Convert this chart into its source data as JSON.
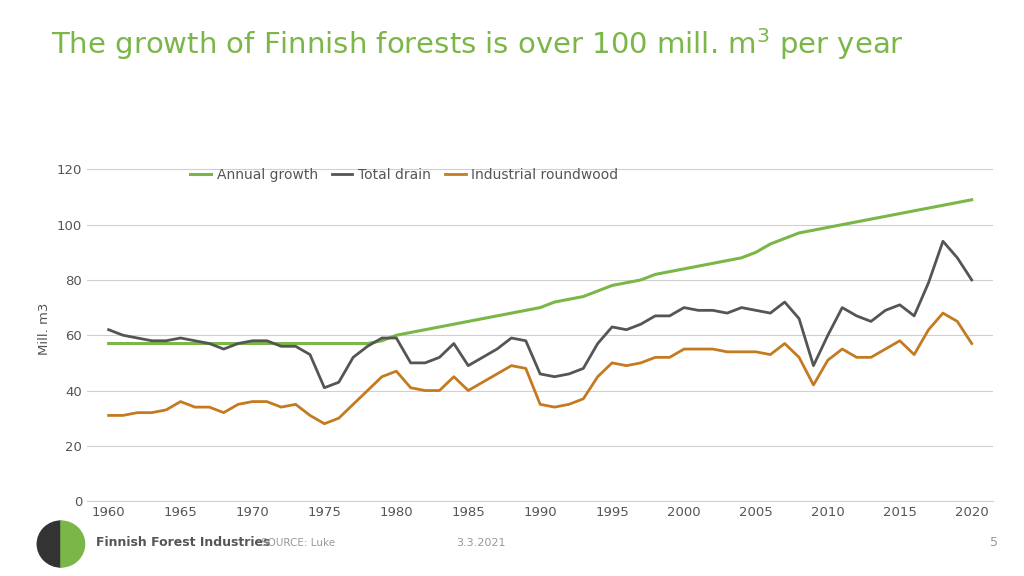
{
  "title_part1": "The growth of Finnish forests is over 100 mill. m",
  "title_super": "3",
  "title_part2": " per year",
  "title_color": "#7ab648",
  "ylabel": "Mill. m3",
  "background_color": "#ffffff",
  "plot_bg_color": "#ffffff",
  "grid_color": "#d0d0d0",
  "years": [
    1960,
    1961,
    1962,
    1963,
    1964,
    1965,
    1966,
    1967,
    1968,
    1969,
    1970,
    1971,
    1972,
    1973,
    1974,
    1975,
    1976,
    1977,
    1978,
    1979,
    1980,
    1981,
    1982,
    1983,
    1984,
    1985,
    1986,
    1987,
    1988,
    1989,
    1990,
    1991,
    1992,
    1993,
    1994,
    1995,
    1996,
    1997,
    1998,
    1999,
    2000,
    2001,
    2002,
    2003,
    2004,
    2005,
    2006,
    2007,
    2008,
    2009,
    2010,
    2011,
    2012,
    2013,
    2014,
    2015,
    2016,
    2017,
    2018,
    2019,
    2020
  ],
  "annual_growth": [
    57,
    57,
    57,
    57,
    57,
    57,
    57,
    57,
    57,
    57,
    57,
    57,
    57,
    57,
    57,
    57,
    57,
    57,
    57,
    58,
    60,
    61,
    62,
    63,
    64,
    65,
    66,
    67,
    68,
    69,
    70,
    72,
    73,
    74,
    76,
    78,
    79,
    80,
    82,
    83,
    84,
    85,
    86,
    87,
    88,
    90,
    93,
    95,
    97,
    98,
    99,
    100,
    101,
    102,
    103,
    104,
    105,
    106,
    107,
    108,
    109
  ],
  "total_drain": [
    62,
    60,
    59,
    58,
    58,
    59,
    58,
    57,
    55,
    57,
    58,
    58,
    56,
    56,
    53,
    41,
    43,
    52,
    56,
    59,
    59,
    50,
    50,
    52,
    57,
    49,
    52,
    55,
    59,
    58,
    46,
    45,
    46,
    48,
    57,
    63,
    62,
    64,
    67,
    67,
    70,
    69,
    69,
    68,
    70,
    69,
    68,
    72,
    66,
    49,
    60,
    70,
    67,
    65,
    69,
    71,
    67,
    79,
    94,
    88,
    80
  ],
  "industrial_roundwood": [
    31,
    31,
    32,
    32,
    33,
    36,
    34,
    34,
    32,
    35,
    36,
    36,
    34,
    35,
    31,
    28,
    30,
    35,
    40,
    45,
    47,
    41,
    40,
    40,
    45,
    40,
    43,
    46,
    49,
    48,
    35,
    34,
    35,
    37,
    45,
    50,
    49,
    50,
    52,
    52,
    55,
    55,
    55,
    54,
    54,
    54,
    53,
    57,
    52,
    42,
    51,
    55,
    52,
    52,
    55,
    58,
    53,
    62,
    68,
    65,
    57
  ],
  "growth_color": "#7ab648",
  "drain_color": "#555555",
  "roundwood_color": "#c47a20",
  "ylim": [
    0,
    125
  ],
  "yticks": [
    0,
    20,
    40,
    60,
    80,
    100,
    120
  ],
  "xticks": [
    1960,
    1965,
    1970,
    1975,
    1980,
    1985,
    1990,
    1995,
    2000,
    2005,
    2010,
    2015,
    2020
  ],
  "legend_labels": [
    "Annual growth",
    "Total drain",
    "Industrial roundwood"
  ],
  "source_text": "SOURCE: Luke",
  "date_text": "3.3.2021",
  "page_num": "5",
  "footer_logo_text": "Finnish Forest Industries",
  "xlim": [
    1958.5,
    2021.5
  ]
}
